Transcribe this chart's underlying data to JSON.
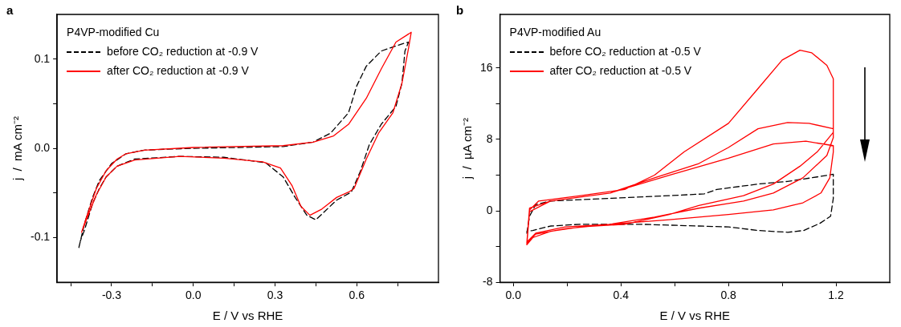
{
  "chart_data": [
    {
      "type": "line",
      "title": "a",
      "xlabel": "E / V vs RHE",
      "ylabel": "j  /  mA cm⁻²",
      "legend_title": "P4VP-modified Cu",
      "legend": "top left",
      "marker": "none",
      "grid": false,
      "xlim": [
        -0.5,
        0.9
      ],
      "xticks": [
        {
          "value": -0.45,
          "label": null
        },
        {
          "value": -0.3,
          "label": "-0.3"
        },
        {
          "value": -0.15,
          "label": null
        },
        {
          "value": 0,
          "label": "0.0"
        },
        {
          "value": 0.15,
          "label": null
        },
        {
          "value": 0.3,
          "label": "0.3"
        },
        {
          "value": 0.45,
          "label": null
        },
        {
          "value": 0.6,
          "label": "0.6"
        },
        {
          "value": 0.75,
          "label": null
        }
      ],
      "ylim": [
        -0.15,
        0.15
      ],
      "yticks": [
        {
          "value": -0.1,
          "label": "-0.1"
        },
        {
          "value": -0.05,
          "label": null
        },
        {
          "value": 0,
          "label": "0.0"
        },
        {
          "value": 0.05,
          "label": null
        },
        {
          "value": 0.1,
          "label": "0.1"
        }
      ],
      "series": [
        {
          "name": "before CO₂ reduction at -0.9 V",
          "color": "#000000",
          "line_style": "dashed",
          "x": [
            -0.42,
            -0.4,
            -0.37,
            -0.345,
            -0.3,
            -0.247,
            -0.18,
            -0.105,
            0.0,
            0.33,
            0.44,
            0.504,
            0.57,
            0.6,
            0.635,
            0.69,
            0.766,
            0.79,
            0.777,
            0.766,
            0.744,
            0.69,
            0.646,
            0.613,
            0.58,
            0.526,
            0.45,
            0.417,
            0.374,
            0.33,
            0.265,
            0.112,
            -0.05,
            -0.215,
            -0.28,
            -0.32,
            -0.345,
            -0.37,
            -0.4,
            -0.415
          ],
          "values": [
            -0.111,
            -0.085,
            -0.055,
            -0.036,
            -0.017,
            -0.006,
            -0.002,
            -0.001,
            0.0,
            0.002,
            0.007,
            0.017,
            0.04,
            0.07,
            0.092,
            0.109,
            0.117,
            0.119,
            0.109,
            0.073,
            0.047,
            0.027,
            0.004,
            -0.026,
            -0.049,
            -0.058,
            -0.08,
            -0.075,
            -0.055,
            -0.032,
            -0.016,
            -0.01,
            -0.009,
            -0.012,
            -0.02,
            -0.032,
            -0.045,
            -0.062,
            -0.092,
            -0.104
          ]
        },
        {
          "name": "after CO₂ reduction at -0.9 V",
          "color": "#ff0000",
          "line_style": "solid",
          "x": [
            -0.41,
            -0.39,
            -0.356,
            -0.32,
            -0.28,
            -0.247,
            -0.18,
            0.0,
            0.33,
            0.44,
            0.515,
            0.57,
            0.635,
            0.69,
            0.744,
            0.8,
            0.79,
            0.766,
            0.733,
            0.68,
            0.635,
            0.59,
            0.57,
            0.526,
            0.472,
            0.428,
            0.395,
            0.363,
            0.32,
            0.254,
            0.112,
            -0.05,
            -0.215,
            -0.28,
            -0.32,
            -0.356,
            -0.39,
            -0.405
          ],
          "values": [
            -0.094,
            -0.075,
            -0.045,
            -0.025,
            -0.012,
            -0.006,
            -0.002,
            0.001,
            0.003,
            0.007,
            0.014,
            0.027,
            0.056,
            0.089,
            0.119,
            0.13,
            0.112,
            0.073,
            0.04,
            0.017,
            -0.012,
            -0.045,
            -0.049,
            -0.055,
            -0.068,
            -0.075,
            -0.065,
            -0.042,
            -0.022,
            -0.015,
            -0.011,
            -0.009,
            -0.013,
            -0.02,
            -0.032,
            -0.052,
            -0.078,
            -0.09
          ]
        }
      ]
    },
    {
      "type": "line",
      "title": "b",
      "xlabel": "E / V vs RHE",
      "ylabel": "j  /  µA cm⁻²",
      "legend_title": "P4VP-modified Au",
      "legend": "top left",
      "marker": "none",
      "grid": false,
      "xlim": [
        -0.05,
        1.4
      ],
      "xticks": [
        {
          "value": 0,
          "label": "0.0"
        },
        {
          "value": 0.2,
          "label": null
        },
        {
          "value": 0.4,
          "label": "0.4"
        },
        {
          "value": 0.6,
          "label": null
        },
        {
          "value": 0.8,
          "label": "0.8"
        },
        {
          "value": 1.0,
          "label": null
        },
        {
          "value": 1.2,
          "label": "1.2"
        }
      ],
      "ylim": [
        -8,
        22
      ],
      "yticks": [
        -8,
        {
          "value": -4,
          "label": null
        },
        0,
        {
          "value": 4,
          "label": null
        },
        8,
        {
          "value": 12,
          "label": null
        },
        16
      ],
      "series": [
        {
          "name": "before CO₂ reduction at -0.5 V",
          "color": "#000000",
          "line_style": "dashed",
          "x": [
            0.05,
            0.06,
            0.083,
            0.138,
            0.36,
            0.58,
            0.71,
            0.757,
            0.91,
            1.02,
            1.13,
            1.19,
            1.19,
            1.18,
            1.14,
            1.08,
            1.02,
            0.91,
            0.856,
            0.8,
            0.69,
            0.47,
            0.25,
            0.138,
            0.072,
            0.05
          ],
          "values": [
            -2.5,
            -0.6,
            0.7,
            1.1,
            1.4,
            1.7,
            1.9,
            2.4,
            3.0,
            3.3,
            3.8,
            4.1,
            1.4,
            -0.6,
            -1.4,
            -2.2,
            -2.4,
            -2.2,
            -2.0,
            -1.8,
            -1.7,
            -1.5,
            -1.5,
            -1.7,
            -2.2,
            -2.3
          ]
        },
        {
          "name": "after CO₂ reduction at -0.5 V",
          "color": "#ff0000",
          "line_style": "solid",
          "x": [
            0.05,
            0.06,
            0.094,
            0.25,
            0.414,
            0.525,
            0.635,
            0.8,
            0.91,
            1.0,
            1.066,
            1.11,
            1.166,
            1.19,
            1.19,
            1.13,
            1.066,
            0.967,
            0.856,
            0.69,
            0.58,
            0.414,
            0.25,
            0.138,
            0.072,
            0.05,
            0.06,
            0.138,
            0.36,
            0.525,
            0.69,
            0.8,
            0.91,
            1.02,
            1.1,
            1.19,
            1.19,
            1.166,
            1.077,
            0.967,
            0.856,
            0.69,
            0.525,
            0.36,
            0.193,
            0.083,
            0.05,
            0.06,
            0.138,
            0.36,
            0.58,
            0.8,
            0.967,
            1.088,
            1.19,
            1.19,
            1.177,
            1.144,
            1.077,
            0.967,
            0.8,
            0.58,
            0.36,
            0.193,
            0.083,
            0.05
          ],
          "values": [
            -3.8,
            0.1,
            1.1,
            1.7,
            2.4,
            4.0,
            6.6,
            9.8,
            13.7,
            16.9,
            18.0,
            17.7,
            16.3,
            14.8,
            8.8,
            6.6,
            5.0,
            3.0,
            1.7,
            0.6,
            -0.4,
            -1.5,
            -1.8,
            -2.3,
            -3.0,
            -3.8,
            -0.1,
            1.1,
            2.0,
            3.7,
            5.3,
            7.1,
            9.2,
            9.9,
            9.8,
            9.2,
            8.2,
            6.2,
            3.7,
            2.0,
            1.1,
            0.3,
            -0.7,
            -1.5,
            -2.0,
            -2.6,
            -3.6,
            0.3,
            1.1,
            2.0,
            4.0,
            5.9,
            7.5,
            7.8,
            7.3,
            6.6,
            3.7,
            2.0,
            0.9,
            0.1,
            -0.4,
            -1.0,
            -1.5,
            -1.8,
            -2.5,
            -3.5
          ]
        }
      ]
    }
  ]
}
